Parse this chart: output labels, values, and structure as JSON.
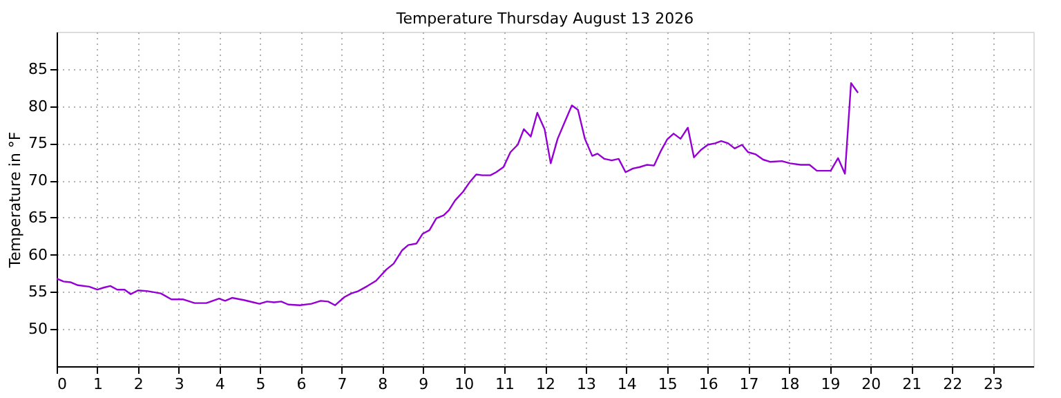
{
  "chart_data": {
    "type": "line",
    "title": "Temperature Thursday August 13 2026",
    "ylabel": "Temperature in °F",
    "xlim": [
      0,
      24
    ],
    "xticks": [
      0,
      1,
      2,
      3,
      4,
      5,
      6,
      7,
      8,
      9,
      10,
      11,
      12,
      13,
      14,
      15,
      16,
      17,
      18,
      19,
      20,
      21,
      22,
      23
    ],
    "ylim": [
      45,
      90
    ],
    "yticks": [
      50,
      55,
      60,
      65,
      70,
      75,
      80,
      85
    ],
    "grid": true,
    "marker": "none",
    "line_style": "solid",
    "series": [
      {
        "color": "#9400d3",
        "x": [
          0,
          0.17,
          0.34,
          0.52,
          0.8,
          1.0,
          1.17,
          1.32,
          1.49,
          1.67,
          1.82,
          2.0,
          2.24,
          2.56,
          2.82,
          3.1,
          3.39,
          3.68,
          3.99,
          4.14,
          4.31,
          4.6,
          4.83,
          4.98,
          5.17,
          5.34,
          5.52,
          5.69,
          5.98,
          6.26,
          6.49,
          6.67,
          6.84,
          7.07,
          7.24,
          7.41,
          7.64,
          7.85,
          8.1,
          8.28,
          8.49,
          8.64,
          8.84,
          8.99,
          9.16,
          9.33,
          9.51,
          9.64,
          9.79,
          9.99,
          10.14,
          10.31,
          10.46,
          10.66,
          10.8,
          10.98,
          11.15,
          11.33,
          11.48,
          11.65,
          11.81,
          11.99,
          12.14,
          12.31,
          12.48,
          12.66,
          12.81,
          12.98,
          13.16,
          13.29,
          13.46,
          13.64,
          13.81,
          13.98,
          14.16,
          14.33,
          14.5,
          14.68,
          14.85,
          15.0,
          15.16,
          15.33,
          15.51,
          15.66,
          15.83,
          16.0,
          16.18,
          16.33,
          16.5,
          16.66,
          16.84,
          16.99,
          17.18,
          17.36,
          17.53,
          17.82,
          18.02,
          18.28,
          18.5,
          18.68,
          18.85,
          19.02,
          19.2,
          19.37,
          19.52,
          19.69
        ],
        "values": [
          56.8,
          56.4,
          56.3,
          55.9,
          55.7,
          55.3,
          55.6,
          55.8,
          55.3,
          55.3,
          54.7,
          55.2,
          55.1,
          54.8,
          54.0,
          54.0,
          53.5,
          53.5,
          54.1,
          53.8,
          54.2,
          53.9,
          53.6,
          53.4,
          53.7,
          53.6,
          53.7,
          53.3,
          53.2,
          53.4,
          53.8,
          53.7,
          53.2,
          54.3,
          54.8,
          55.1,
          55.8,
          56.5,
          58.0,
          58.8,
          60.6,
          61.3,
          61.5,
          62.8,
          63.3,
          64.9,
          65.3,
          66.0,
          67.3,
          68.5,
          69.7,
          70.8,
          70.7,
          70.7,
          71.1,
          71.8,
          73.8,
          74.8,
          76.9,
          75.9,
          79.1,
          76.9,
          72.3,
          75.6,
          77.8,
          80.1,
          79.5,
          75.6,
          73.3,
          73.6,
          72.9,
          72.7,
          72.9,
          71.1,
          71.6,
          71.8,
          72.1,
          72.0,
          74.0,
          75.5,
          76.3,
          75.6,
          77.1,
          73.1,
          74.1,
          74.8,
          75.0,
          75.3,
          75.0,
          74.3,
          74.8,
          73.8,
          73.5,
          72.8,
          72.5,
          72.6,
          72.3,
          72.1,
          72.1,
          71.3,
          71.3,
          71.3,
          73.0,
          70.9,
          83.1,
          81.8
        ]
      }
    ]
  }
}
